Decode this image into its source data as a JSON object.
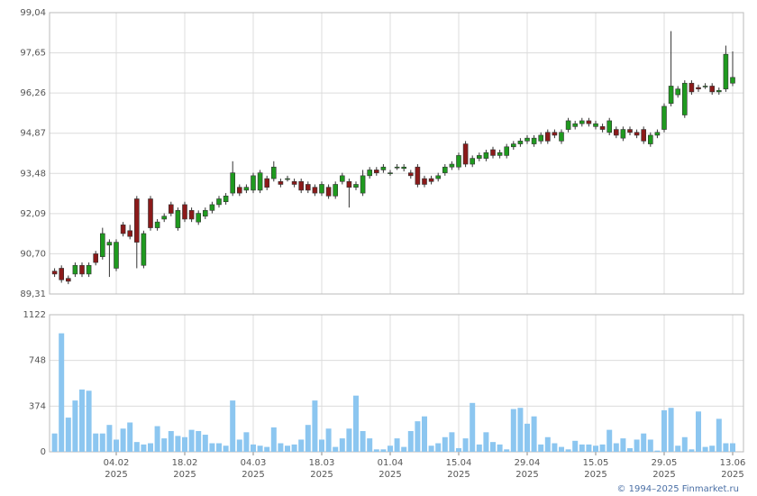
{
  "chart_data": {
    "type": "candlestick",
    "categories": [
      null,
      null,
      null,
      null,
      null,
      null,
      null,
      null,
      null,
      "04.02\n2025",
      null,
      null,
      null,
      null,
      null,
      null,
      null,
      null,
      null,
      "18.02\n2025",
      null,
      null,
      null,
      null,
      null,
      null,
      null,
      null,
      null,
      "04.03\n2025",
      null,
      null,
      null,
      null,
      null,
      null,
      null,
      null,
      null,
      "18.03\n2025",
      null,
      null,
      null,
      null,
      null,
      null,
      null,
      null,
      null,
      "01.04\n2025",
      null,
      null,
      null,
      null,
      null,
      null,
      null,
      null,
      null,
      "15.04\n2025",
      null,
      null,
      null,
      null,
      null,
      null,
      null,
      null,
      null,
      "29.04\n2025",
      null,
      null,
      null,
      null,
      null,
      null,
      null,
      null,
      null,
      "15.05\n2025",
      null,
      null,
      null,
      null,
      null,
      null,
      null,
      null,
      null,
      "29.05\n2025",
      null,
      null,
      null,
      null,
      null,
      null,
      null,
      null,
      null,
      "13.06\n2025"
    ],
    "open": [
      90.1,
      90.2,
      89.85,
      90.0,
      90.3,
      90.0,
      90.7,
      90.6,
      91.0,
      90.2,
      91.7,
      91.5,
      92.6,
      90.3,
      92.6,
      91.6,
      91.9,
      92.4,
      91.6,
      92.4,
      92.2,
      91.8,
      92.0,
      92.2,
      92.4,
      92.5,
      92.8,
      93.0,
      92.9,
      92.9,
      92.9,
      93.3,
      93.3,
      93.2,
      93.3,
      93.2,
      93.2,
      93.1,
      93.0,
      92.8,
      93.0,
      92.7,
      93.2,
      93.2,
      93.0,
      92.8,
      93.4,
      93.6,
      93.6,
      93.5,
      93.7,
      93.65,
      93.5,
      93.7,
      93.3,
      93.3,
      93.3,
      93.5,
      93.7,
      93.7,
      94.5,
      93.8,
      94.0,
      94.0,
      94.3,
      94.1,
      94.1,
      94.4,
      94.5,
      94.6,
      94.5,
      94.6,
      94.9,
      94.9,
      94.6,
      95.0,
      95.1,
      95.2,
      95.3,
      95.1,
      95.1,
      94.9,
      95.0,
      94.7,
      95.0,
      94.9,
      95.0,
      94.5,
      94.8,
      95.0,
      95.9,
      96.2,
      95.5,
      96.6,
      96.45,
      96.5,
      96.5,
      96.3,
      96.4,
      96.6
    ],
    "high": [
      90.2,
      90.3,
      89.95,
      90.4,
      90.4,
      90.4,
      90.8,
      91.6,
      91.2,
      91.2,
      91.8,
      91.7,
      92.7,
      91.5,
      92.7,
      91.9,
      92.1,
      92.5,
      92.3,
      92.5,
      92.3,
      92.2,
      92.3,
      92.5,
      92.7,
      92.8,
      93.9,
      93.1,
      93.1,
      93.5,
      93.6,
      93.4,
      93.9,
      93.3,
      93.4,
      93.3,
      93.3,
      93.2,
      93.1,
      93.2,
      93.1,
      93.2,
      93.5,
      93.3,
      93.2,
      93.6,
      93.7,
      93.7,
      93.8,
      93.6,
      93.8,
      93.8,
      93.6,
      93.8,
      93.4,
      93.4,
      93.5,
      93.8,
      93.9,
      94.2,
      94.6,
      94.1,
      94.2,
      94.3,
      94.4,
      94.3,
      94.5,
      94.6,
      94.7,
      94.8,
      94.8,
      94.9,
      95.0,
      95.0,
      95.0,
      95.4,
      95.3,
      95.4,
      95.4,
      95.3,
      95.2,
      95.4,
      95.1,
      95.1,
      95.1,
      95.0,
      95.1,
      94.9,
      95.0,
      95.9,
      98.4,
      96.5,
      96.7,
      96.7,
      96.55,
      96.6,
      96.6,
      96.45,
      97.9,
      97.7
    ],
    "low": [
      89.9,
      89.7,
      89.65,
      89.9,
      89.9,
      89.9,
      90.3,
      90.5,
      89.9,
      90.1,
      91.3,
      91.2,
      90.2,
      90.2,
      91.5,
      91.5,
      91.8,
      92.0,
      91.5,
      91.8,
      91.8,
      91.7,
      91.9,
      92.1,
      92.3,
      92.4,
      92.7,
      92.7,
      92.8,
      92.8,
      92.8,
      92.9,
      93.2,
      93.0,
      93.2,
      93.0,
      92.8,
      92.8,
      92.7,
      92.7,
      92.6,
      92.6,
      93.1,
      92.3,
      92.9,
      92.7,
      93.3,
      93.4,
      93.5,
      93.4,
      93.6,
      93.55,
      93.3,
      93.0,
      93.0,
      93.1,
      93.2,
      93.4,
      93.6,
      93.6,
      93.7,
      93.7,
      93.9,
      93.9,
      94.0,
      94.0,
      94.0,
      94.3,
      94.4,
      94.5,
      94.4,
      94.5,
      94.5,
      94.7,
      94.5,
      94.9,
      95.0,
      95.1,
      95.1,
      95.0,
      94.9,
      94.8,
      94.7,
      94.6,
      94.8,
      94.7,
      94.5,
      94.4,
      94.7,
      94.9,
      95.8,
      96.1,
      95.4,
      96.2,
      96.3,
      96.4,
      96.2,
      96.2,
      96.3,
      96.5
    ],
    "close": [
      90.0,
      89.8,
      89.75,
      90.3,
      90.0,
      90.3,
      90.4,
      91.4,
      91.1,
      91.1,
      91.4,
      91.3,
      91.1,
      91.4,
      91.6,
      91.8,
      92.0,
      92.1,
      92.2,
      91.9,
      91.9,
      92.1,
      92.2,
      92.4,
      92.6,
      92.7,
      93.5,
      92.8,
      93.0,
      93.4,
      93.5,
      93.0,
      93.7,
      93.1,
      93.3,
      93.1,
      92.9,
      92.9,
      92.8,
      93.1,
      92.7,
      93.1,
      93.4,
      93.0,
      93.1,
      93.4,
      93.6,
      93.5,
      93.7,
      93.5,
      93.7,
      93.7,
      93.4,
      93.1,
      93.1,
      93.2,
      93.4,
      93.7,
      93.8,
      94.1,
      93.8,
      94.0,
      94.1,
      94.2,
      94.1,
      94.2,
      94.4,
      94.5,
      94.6,
      94.7,
      94.7,
      94.8,
      94.6,
      94.8,
      94.9,
      95.3,
      95.2,
      95.3,
      95.2,
      95.2,
      95.0,
      95.3,
      94.8,
      95.0,
      94.9,
      94.8,
      94.6,
      94.8,
      94.9,
      95.8,
      96.5,
      96.4,
      96.6,
      96.3,
      96.4,
      96.5,
      96.3,
      96.35,
      97.6,
      96.8
    ],
    "volume": [
      150,
      970,
      280,
      420,
      510,
      500,
      150,
      150,
      220,
      100,
      190,
      240,
      80,
      60,
      70,
      210,
      110,
      170,
      130,
      120,
      180,
      170,
      140,
      70,
      70,
      50,
      420,
      100,
      160,
      60,
      50,
      40,
      200,
      70,
      50,
      60,
      100,
      220,
      420,
      100,
      190,
      40,
      110,
      190,
      460,
      170,
      110,
      20,
      20,
      50,
      110,
      40,
      170,
      250,
      290,
      50,
      70,
      120,
      160,
      30,
      110,
      400,
      60,
      160,
      80,
      60,
      20,
      350,
      360,
      230,
      290,
      60,
      120,
      70,
      40,
      20,
      90,
      60,
      60,
      50,
      60,
      180,
      70,
      110,
      30,
      100,
      150,
      100,
      10,
      340,
      360,
      50,
      120,
      20,
      330,
      40,
      50,
      270,
      70,
      70
    ],
    "up_color": "#1f9a1f",
    "down_color": "#8b1a1a",
    "volume_color": "#8cc6f0",
    "ylim": [
      89.31,
      99.04
    ],
    "yticks": [
      {
        "value": 89.31,
        "label": "89,31"
      },
      {
        "value": 90.7,
        "label": "90,70"
      },
      {
        "value": 92.09,
        "label": "92,09"
      },
      {
        "value": 93.48,
        "label": "93,48"
      },
      {
        "value": 94.87,
        "label": "94,87"
      },
      {
        "value": 96.26,
        "label": "96,26"
      },
      {
        "value": 97.65,
        "label": "97,65"
      },
      {
        "value": 99.04,
        "label": "99,04"
      }
    ],
    "y2lim": [
      0,
      1122
    ],
    "y2ticks": [
      0,
      374,
      748,
      1122
    ],
    "grid": true,
    "footer": "© 1994–2025 Finmarket.ru"
  }
}
